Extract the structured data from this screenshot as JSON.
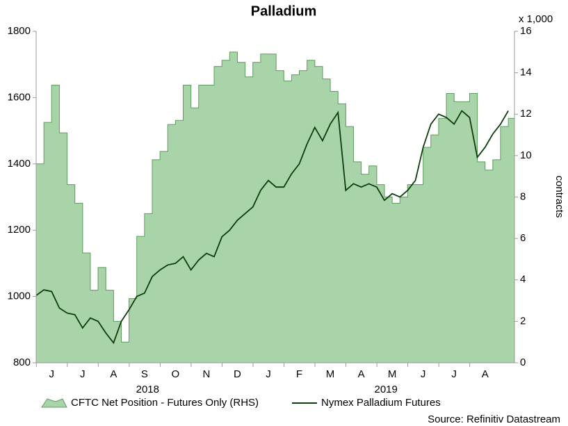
{
  "chart_data": {
    "type": "line",
    "title": "Palladium",
    "y2_unit": "x 1,000",
    "y2_label": "contracts",
    "source": "Source: Refinitiv Datastream",
    "xlim": [
      0,
      15.45
    ],
    "xticks": [
      {
        "value": 0.5,
        "label": "J"
      },
      {
        "value": 1.5,
        "label": "J"
      },
      {
        "value": 2.5,
        "label": "A"
      },
      {
        "value": 3.5,
        "label": "S"
      },
      {
        "value": 4.5,
        "label": "O"
      },
      {
        "value": 5.5,
        "label": "N"
      },
      {
        "value": 6.5,
        "label": "D"
      },
      {
        "value": 7.5,
        "label": "J"
      },
      {
        "value": 8.5,
        "label": "F"
      },
      {
        "value": 9.5,
        "label": "M"
      },
      {
        "value": 10.5,
        "label": "A"
      },
      {
        "value": 11.5,
        "label": "M"
      },
      {
        "value": 12.5,
        "label": "J"
      },
      {
        "value": 13.5,
        "label": "J"
      },
      {
        "value": 14.5,
        "label": "A"
      }
    ],
    "years": [
      {
        "value": 3.6,
        "label": "2018"
      },
      {
        "value": 11.3,
        "label": "2019"
      }
    ],
    "ylim": [
      800,
      1800
    ],
    "yticks": [
      800,
      1000,
      1200,
      1400,
      1600,
      1800
    ],
    "y2lim": [
      0,
      16
    ],
    "y2ticks": [
      0,
      2,
      4,
      6,
      8,
      10,
      12,
      14,
      16
    ],
    "x": [
      0,
      0.25,
      0.5,
      0.75,
      1,
      1.25,
      1.5,
      1.75,
      2,
      2.25,
      2.5,
      2.75,
      3,
      3.25,
      3.5,
      3.75,
      4,
      4.25,
      4.5,
      4.75,
      5,
      5.25,
      5.5,
      5.75,
      6,
      6.25,
      6.5,
      6.75,
      7,
      7.25,
      7.5,
      7.75,
      8,
      8.25,
      8.5,
      8.75,
      9,
      9.25,
      9.5,
      9.75,
      10,
      10.25,
      10.5,
      10.75,
      11,
      11.25,
      11.5,
      11.75,
      12,
      12.25,
      12.5,
      12.75,
      13,
      13.25,
      13.5,
      13.75,
      14,
      14.25,
      14.5,
      14.75,
      15,
      15.25
    ],
    "series": [
      {
        "name": "CFTC Net Position - Futures Only (RHS)",
        "type": "area",
        "axis": "y2",
        "color": "#a9d3a9",
        "values": [
          9.6,
          11.6,
          13.4,
          11.1,
          8.6,
          7.7,
          5.3,
          3.5,
          4.6,
          3.5,
          2.0,
          1.0,
          3.1,
          6.1,
          7.2,
          9.8,
          10.2,
          11.5,
          11.7,
          13.4,
          12.3,
          13.4,
          13.4,
          14.3,
          14.6,
          15.0,
          14.5,
          13.8,
          14.5,
          14.9,
          14.9,
          14.1,
          13.6,
          13.9,
          14.1,
          14.6,
          14.3,
          13.7,
          13.1,
          12.5,
          11.4,
          9.7,
          9.1,
          9.5,
          8.6,
          8.0,
          7.7,
          8.0,
          8.6,
          8.6,
          10.4,
          11.0,
          11.8,
          13.0,
          12.6,
          12.6,
          13.0,
          9.7,
          9.3,
          9.8,
          11.4,
          11.8
        ]
      },
      {
        "name": "Nymex Palladium Futures",
        "type": "line",
        "axis": "y",
        "color": "#0b3d0b",
        "values": [
          1003,
          1020,
          1015,
          965,
          950,
          945,
          905,
          935,
          925,
          890,
          860,
          925,
          960,
          1000,
          1010,
          1060,
          1080,
          1095,
          1100,
          1120,
          1080,
          1110,
          1130,
          1120,
          1180,
          1200,
          1230,
          1250,
          1270,
          1320,
          1350,
          1330,
          1330,
          1370,
          1400,
          1460,
          1510,
          1470,
          1520,
          1555,
          1320,
          1340,
          1330,
          1340,
          1330,
          1290,
          1310,
          1300,
          1320,
          1350,
          1450,
          1520,
          1550,
          1540,
          1520,
          1560,
          1540,
          1420,
          1450,
          1490,
          1520,
          1560
        ]
      }
    ]
  }
}
